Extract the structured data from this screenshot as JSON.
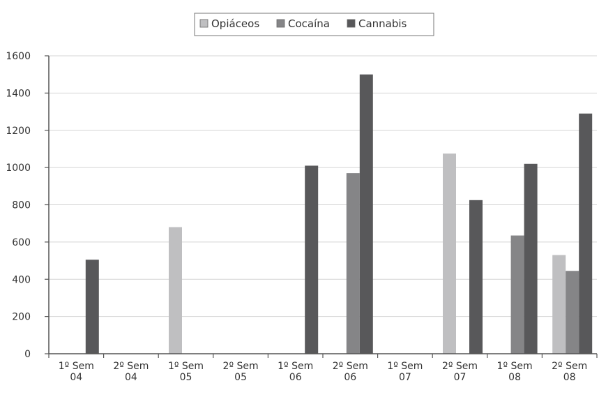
{
  "chart_data": {
    "type": "bar",
    "title": "",
    "xlabel": "",
    "ylabel": "",
    "categories": [
      [
        "1º Sem",
        "04"
      ],
      [
        "2º Sem",
        "04"
      ],
      [
        "1º Sem",
        "05"
      ],
      [
        "2º Sem",
        "05"
      ],
      [
        "1º Sem",
        "06"
      ],
      [
        "2º Sem",
        "06"
      ],
      [
        "1º Sem",
        "07"
      ],
      [
        "2º Sem",
        "07"
      ],
      [
        "1º Sem",
        "08"
      ],
      [
        "2º Sem",
        "08"
      ]
    ],
    "series": [
      {
        "name": "Opiáceos",
        "color": "#bfbfc1",
        "values": [
          0,
          0,
          680,
          0,
          0,
          0,
          0,
          1075,
          0,
          530
        ]
      },
      {
        "name": "Cocaína",
        "color": "#858587",
        "values": [
          0,
          0,
          0,
          0,
          0,
          970,
          0,
          0,
          635,
          445
        ]
      },
      {
        "name": "Cannabis",
        "color": "#58585a",
        "values": [
          505,
          0,
          0,
          0,
          1010,
          1500,
          0,
          825,
          1020,
          1290
        ]
      }
    ],
    "ylim": [
      0,
      1600
    ],
    "yticks": [
      0,
      200,
      400,
      600,
      800,
      1000,
      1200,
      1400,
      1600
    ],
    "grid": true,
    "legend_position": "top-center"
  }
}
